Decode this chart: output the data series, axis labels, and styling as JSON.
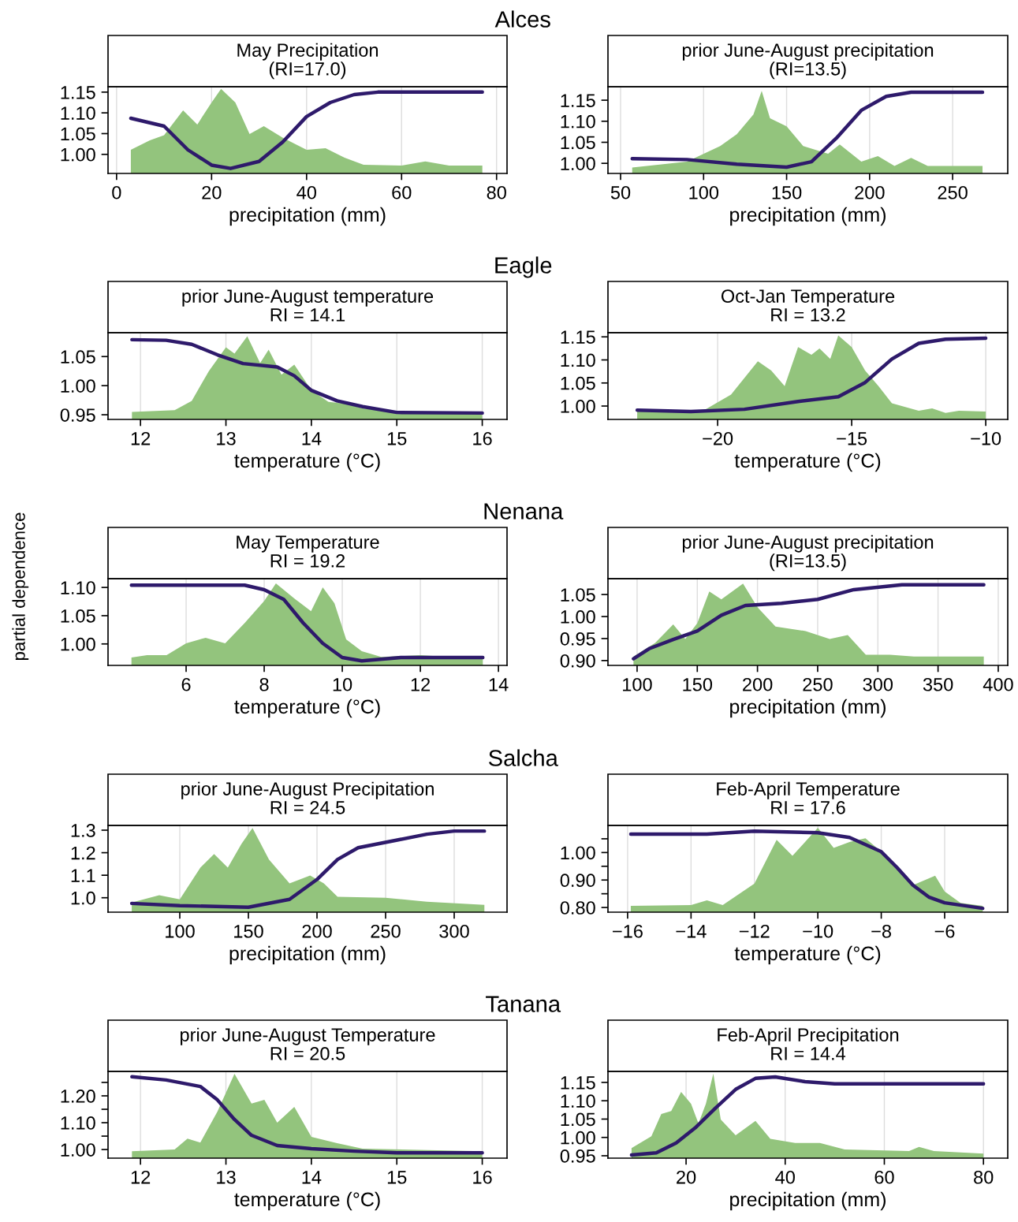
{
  "chart_data": [
    {
      "type": "line",
      "subtitle": "Alces",
      "title": "May Precipitation\n(RI=17.0)",
      "xlabel": "precipitation (mm)",
      "xlim": [
        -1.8,
        82.2
      ],
      "xticks": [
        0,
        20,
        40,
        60,
        80
      ],
      "ylim": [
        0.954,
        1.163
      ],
      "yticks": [
        {
          "value": 1.0,
          "label": "1.00"
        },
        1.05,
        {
          "value": 1.1,
          "label": "1.10"
        },
        1.15
      ],
      "grid": "x",
      "series": [
        {
          "type": "area",
          "color": "#93c47d",
          "x": [
            3,
            7,
            10,
            14,
            17,
            20,
            22,
            25,
            28,
            31,
            35,
            40,
            44,
            48,
            52,
            60,
            65,
            70,
            77
          ],
          "values": [
            1.011,
            1.034,
            1.046,
            1.106,
            1.072,
            1.125,
            1.158,
            1.125,
            1.049,
            1.068,
            1.04,
            1.011,
            1.015,
            0.992,
            0.975,
            0.973,
            0.983,
            0.973,
            0.973
          ]
        },
        {
          "type": "line",
          "color": "#2e1a6b",
          "x": [
            3,
            10,
            15,
            20,
            24,
            30,
            35,
            40,
            45,
            50,
            55,
            77
          ],
          "values": [
            1.087,
            1.068,
            1.011,
            0.974,
            0.966,
            0.983,
            1.03,
            1.091,
            1.125,
            1.144,
            1.15,
            1.15
          ]
        }
      ]
    },
    {
      "type": "line",
      "title": "prior June-August precipitation\n(RI=13.5)",
      "xlabel": "precipitation (mm)",
      "xlim": [
        42.4,
        283.2
      ],
      "xticks": [
        50,
        100,
        150,
        200,
        250
      ],
      "ylim": [
        0.976,
        1.182
      ],
      "yticks": [
        {
          "value": 1.0,
          "label": "1.00"
        },
        1.05,
        {
          "value": 1.1,
          "label": "1.10"
        },
        1.15
      ],
      "grid": "x",
      "series": [
        {
          "type": "area",
          "color": "#93c47d",
          "x": [
            57,
            90,
            110,
            120,
            130,
            135,
            140,
            150,
            160,
            175,
            182,
            195,
            205,
            215,
            225,
            235,
            268
          ],
          "values": [
            0.99,
            1.004,
            1.041,
            1.069,
            1.116,
            1.172,
            1.107,
            1.088,
            1.041,
            1.023,
            1.045,
            1.004,
            1.017,
            0.994,
            1.013,
            0.994,
            0.994
          ]
        },
        {
          "type": "line",
          "color": "#2e1a6b",
          "x": [
            57,
            90,
            120,
            150,
            165,
            180,
            195,
            210,
            225,
            268
          ],
          "values": [
            1.011,
            1.009,
            0.998,
            0.991,
            1.004,
            1.06,
            1.126,
            1.159,
            1.169,
            1.169
          ]
        }
      ]
    },
    {
      "type": "line",
      "subtitle": "Eagle",
      "title": "prior June-August temperature\nRI = 14.1",
      "xlabel": "temperature (°C)",
      "xlim": [
        11.62,
        16.29
      ],
      "xticks": [
        12,
        13,
        14,
        15,
        16
      ],
      "ylim": [
        0.942,
        1.091
      ],
      "yticks": [
        0.95,
        {
          "value": 1.0,
          "label": "1.00"
        },
        1.05
      ],
      "grid": "x",
      "series": [
        {
          "type": "area",
          "color": "#93c47d",
          "x": [
            11.9,
            12.4,
            12.6,
            12.8,
            13.0,
            13.1,
            13.25,
            13.4,
            13.5,
            13.65,
            13.8,
            14.0,
            14.2,
            14.4,
            14.6,
            15,
            16
          ],
          "values": [
            0.955,
            0.958,
            0.974,
            1.025,
            1.066,
            1.055,
            1.085,
            1.039,
            1.062,
            1.019,
            1.036,
            0.992,
            0.972,
            0.969,
            0.961,
            0.955,
            0.955
          ]
        },
        {
          "type": "line",
          "color": "#2e1a6b",
          "x": [
            11.9,
            12.3,
            12.6,
            12.9,
            13.2,
            13.6,
            13.8,
            14.0,
            14.3,
            14.6,
            15,
            16
          ],
          "values": [
            1.079,
            1.078,
            1.071,
            1.053,
            1.038,
            1.032,
            1.017,
            0.992,
            0.974,
            0.964,
            0.954,
            0.953
          ]
        }
      ]
    },
    {
      "type": "line",
      "title": "Oct-Jan Temperature\nRI = 13.2",
      "xlabel": "temperature (°C)",
      "xlim": [
        -24.09,
        -9.18
      ],
      "xticks": [
        {
          "value": -20,
          "label": "−20"
        },
        {
          "value": -15,
          "label": "−15"
        },
        {
          "value": -10,
          "label": "−10"
        }
      ],
      "ylim": [
        0.971,
        1.159
      ],
      "yticks": [
        {
          "value": 1.0,
          "label": "1.00"
        },
        1.05,
        {
          "value": 1.1,
          "label": "1.10"
        },
        1.15
      ],
      "grid": "x",
      "series": [
        {
          "type": "area",
          "color": "#93c47d",
          "x": [
            -23,
            -20.5,
            -19.5,
            -18.5,
            -18,
            -17.5,
            -17,
            -16.5,
            -16.2,
            -15.8,
            -15.5,
            -15,
            -14.5,
            -14,
            -13.5,
            -12.5,
            -12,
            -11.5,
            -11,
            -10
          ],
          "values": [
            0.988,
            0.991,
            1.025,
            1.097,
            1.077,
            1.043,
            1.128,
            1.111,
            1.125,
            1.102,
            1.153,
            1.128,
            1.077,
            1.043,
            1.006,
            0.99,
            0.995,
            0.985,
            0.99,
            0.988
          ]
        },
        {
          "type": "line",
          "color": "#2e1a6b",
          "x": [
            -23,
            -21,
            -19,
            -17,
            -15.5,
            -14.5,
            -13.5,
            -12.5,
            -11.5,
            -10
          ],
          "values": [
            0.991,
            0.988,
            0.993,
            1.01,
            1.02,
            1.051,
            1.102,
            1.136,
            1.145,
            1.147
          ]
        }
      ]
    },
    {
      "type": "line",
      "subtitle": "Nenana",
      "ylabel": "partial dependence",
      "title": "May Temperature\nRI = 19.2",
      "xlabel": "temperature (°C)",
      "xlim": [
        4.0,
        14.22
      ],
      "xticks": [
        6,
        8,
        10,
        12,
        14
      ],
      "ylim": [
        0.962,
        1.1155
      ],
      "yticks": [
        {
          "value": 1.0,
          "label": "1.00"
        },
        1.05,
        {
          "value": 1.1,
          "label": "1.10"
        }
      ],
      "grid": "x",
      "series": [
        {
          "type": "area",
          "color": "#93c47d",
          "x": [
            4.6,
            5,
            5.5,
            6,
            6.5,
            7,
            7.5,
            8,
            8.3,
            8.8,
            9.2,
            9.5,
            9.8,
            10.1,
            10.5,
            11,
            12,
            13.6
          ],
          "values": [
            0.976,
            0.98,
            0.98,
            1.001,
            1.011,
            1.001,
            1.037,
            1.076,
            1.107,
            1.079,
            1.058,
            1.1,
            1.072,
            1.008,
            0.987,
            0.977,
            0.98,
            0.973
          ]
        },
        {
          "type": "line",
          "color": "#2e1a6b",
          "x": [
            4.6,
            6,
            7.5,
            8,
            8.5,
            9,
            9.5,
            10,
            10.5,
            11.5,
            13.6
          ],
          "values": [
            1.104,
            1.104,
            1.104,
            1.096,
            1.079,
            1.037,
            1.001,
            0.976,
            0.97,
            0.976,
            0.976
          ]
        }
      ]
    },
    {
      "type": "line",
      "title": "prior June-August precipitation\n(RI=13.5)",
      "xlabel": "precipitation (mm)",
      "xlim": [
        75.8,
        407.9
      ],
      "xticks": [
        100,
        150,
        200,
        250,
        300,
        350,
        400
      ],
      "ylim": [
        0.889,
        1.086
      ],
      "yticks": [
        {
          "value": 0.9,
          "label": "0.90"
        },
        0.95,
        {
          "value": 1.0,
          "label": "1.00"
        },
        1.05
      ],
      "grid": "x",
      "series": [
        {
          "type": "area",
          "color": "#93c47d",
          "x": [
            97,
            115,
            130,
            140,
            150,
            160,
            170,
            188,
            200,
            215,
            240,
            250,
            260,
            275,
            290,
            310,
            330,
            388
          ],
          "values": [
            0.909,
            0.94,
            0.982,
            0.949,
            0.985,
            1.057,
            1.039,
            1.075,
            1.021,
            0.977,
            0.967,
            0.958,
            0.949,
            0.958,
            0.913,
            0.913,
            0.909,
            0.909
          ]
        },
        {
          "type": "line",
          "color": "#2e1a6b",
          "x": [
            97,
            110,
            130,
            150,
            170,
            190,
            220,
            250,
            280,
            320,
            388
          ],
          "values": [
            0.904,
            0.927,
            0.948,
            0.967,
            1.003,
            1.025,
            1.03,
            1.039,
            1.061,
            1.072,
            1.072
          ]
        }
      ]
    },
    {
      "type": "line",
      "subtitle": "Salcha",
      "title": "prior June-August Precipitation\nRI = 24.5",
      "xlabel": "precipitation (mm)",
      "xlim": [
        47.7,
        338.5
      ],
      "xticks": [
        100,
        150,
        200,
        250,
        300
      ],
      "ylim": [
        0.936,
        1.321
      ],
      "yticks": [
        {
          "value": 1.0,
          "label": "1.0"
        },
        1.1,
        1.2,
        1.3
      ],
      "grid": "x",
      "series": [
        {
          "type": "area",
          "color": "#93c47d",
          "x": [
            65,
            85,
            100,
            115,
            125,
            135,
            145,
            153,
            165,
            180,
            195,
            205,
            215,
            250,
            280,
            322
          ],
          "values": [
            0.979,
            1.011,
            0.993,
            1.134,
            1.194,
            1.134,
            1.24,
            1.31,
            1.17,
            1.064,
            1.099,
            1.064,
            1.004,
            1.0,
            0.982,
            0.968
          ]
        },
        {
          "type": "line",
          "color": "#2e1a6b",
          "x": [
            65,
            100,
            150,
            180,
            200,
            215,
            230,
            260,
            280,
            300,
            322
          ],
          "values": [
            0.975,
            0.965,
            0.958,
            0.993,
            1.081,
            1.17,
            1.222,
            1.258,
            1.282,
            1.296,
            1.296
          ]
        }
      ]
    },
    {
      "type": "line",
      "title": "Feb-April Temperature\nRI = 17.6",
      "xlabel": "temperature (°C)",
      "xlim": [
        -16.62,
        -4.01
      ],
      "xticks": [
        {
          "value": -16,
          "label": "−16"
        },
        {
          "value": -14,
          "label": "−14"
        },
        {
          "value": -12,
          "label": "−12"
        },
        {
          "value": -10,
          "label": "−10"
        },
        {
          "value": -8,
          "label": "−8"
        },
        {
          "value": -6,
          "label": "−6"
        }
      ],
      "ylim": [
        0.783,
        1.0986
      ],
      "yticks": [
        {
          "value": 0.8,
          "label": "0.80"
        },
        {
          "value": 0.85,
          "label": null
        },
        {
          "value": 0.9,
          "label": "0.90"
        },
        {
          "value": 0.95,
          "label": null
        },
        {
          "value": 1.0,
          "label": "1.00"
        },
        {
          "value": 1.05,
          "label": null
        }
      ],
      "grid": "x",
      "series": [
        {
          "type": "area",
          "color": "#93c47d",
          "x": [
            -15.9,
            -14,
            -13.5,
            -13,
            -12,
            -11.3,
            -10.8,
            -10,
            -9.5,
            -9,
            -8.5,
            -8,
            -7.5,
            -7,
            -6.3,
            -6,
            -5.5,
            -4.8
          ],
          "values": [
            0.806,
            0.809,
            0.826,
            0.809,
            0.887,
            1.046,
            0.988,
            1.09,
            1.017,
            1.038,
            1.052,
            1.003,
            0.945,
            0.881,
            0.916,
            0.858,
            0.817,
            0.806
          ]
        },
        {
          "type": "line",
          "color": "#2e1a6b",
          "x": [
            -15.9,
            -13.5,
            -12,
            -10,
            -9,
            -8,
            -7.5,
            -7,
            -6.5,
            -6,
            -4.8
          ],
          "values": [
            1.067,
            1.067,
            1.078,
            1.072,
            1.055,
            1.003,
            0.945,
            0.881,
            0.838,
            0.817,
            0.797
          ]
        }
      ]
    },
    {
      "type": "line",
      "subtitle": "Tanana",
      "title": "prior June-August Temperature\nRI = 20.5",
      "xlabel": "temperature (°C)",
      "xlim": [
        11.62,
        16.29
      ],
      "xticks": [
        12,
        13,
        14,
        15,
        16
      ],
      "ylim": [
        0.968,
        1.291
      ],
      "yticks": [
        {
          "value": 1.0,
          "label": "1.00"
        },
        {
          "value": 1.05,
          "label": null
        },
        {
          "value": 1.1,
          "label": "1.10"
        },
        {
          "value": 1.15,
          "label": null
        },
        {
          "value": 1.2,
          "label": "1.20"
        },
        {
          "value": 1.25,
          "label": null
        }
      ],
      "grid": "x",
      "series": [
        {
          "type": "area",
          "color": "#93c47d",
          "x": [
            11.9,
            12.4,
            12.55,
            12.7,
            12.9,
            13.1,
            13.3,
            13.45,
            13.6,
            13.8,
            14,
            14.3,
            14.6,
            16
          ],
          "values": [
            0.994,
            1.0,
            1.041,
            1.026,
            1.141,
            1.282,
            1.171,
            1.185,
            1.1,
            1.159,
            1.047,
            1.024,
            1.003,
            0.994
          ]
        },
        {
          "type": "line",
          "color": "#2e1a6b",
          "x": [
            11.9,
            12.3,
            12.7,
            12.9,
            13.1,
            13.3,
            13.6,
            14,
            14.5,
            15,
            16
          ],
          "values": [
            1.271,
            1.259,
            1.235,
            1.185,
            1.112,
            1.053,
            1.015,
            1.003,
            0.994,
            0.988,
            0.988
          ]
        }
      ]
    },
    {
      "type": "line",
      "title": "Feb-April Precipitation\nRI = 14.4",
      "xlabel": "precipitation (mm)",
      "xlim": [
        4.24,
        84.9
      ],
      "xticks": [
        20,
        40,
        60,
        80
      ],
      "ylim": [
        0.9435,
        1.18
      ],
      "yticks": [
        0.95,
        {
          "value": 1.0,
          "label": "1.00"
        },
        1.05,
        {
          "value": 1.1,
          "label": "1.10"
        },
        1.15
      ],
      "grid": "x",
      "series": [
        {
          "type": "area",
          "color": "#93c47d",
          "x": [
            9,
            13,
            15,
            17,
            19,
            21,
            22.5,
            24,
            25.5,
            27,
            30,
            34,
            37,
            42,
            47,
            52,
            65,
            67,
            70,
            80
          ],
          "values": [
            0.971,
            1.003,
            1.064,
            1.072,
            1.124,
            1.092,
            1.038,
            1.092,
            1.174,
            1.049,
            1.006,
            1.045,
            0.996,
            0.985,
            0.985,
            0.967,
            0.963,
            0.974,
            0.963,
            0.956
          ]
        },
        {
          "type": "line",
          "color": "#2e1a6b",
          "x": [
            9,
            14,
            18,
            22,
            26,
            30,
            34,
            38,
            44,
            50,
            80
          ],
          "values": [
            0.952,
            0.958,
            0.985,
            1.028,
            1.081,
            1.131,
            1.161,
            1.165,
            1.152,
            1.146,
            1.146
          ]
        }
      ]
    }
  ]
}
